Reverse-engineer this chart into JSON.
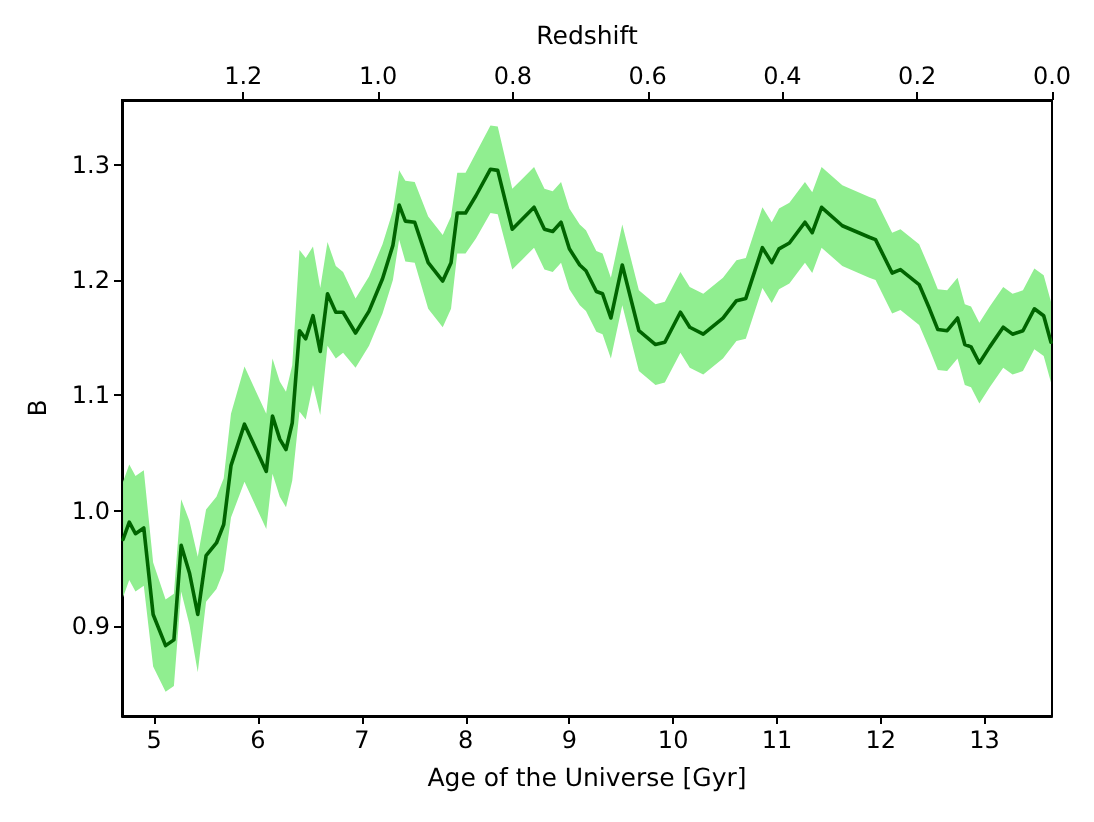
{
  "chart_data": {
    "type": "line",
    "xlabel": "Age of the Universe [Gyr]",
    "ylabel": "B",
    "x2label": "Redshift",
    "xlim": [
      4.69,
      13.65
    ],
    "xticks": [
      5,
      6,
      7,
      8,
      9,
      10,
      11,
      12,
      13
    ],
    "x2lim": [
      1.38,
      0.0
    ],
    "x2ticks": [
      {
        "value": 1.2,
        "label": "1.2"
      },
      {
        "value": 1.0,
        "label": "1.0"
      },
      {
        "value": 0.8,
        "label": "0.8"
      },
      {
        "value": 0.6,
        "label": "0.6"
      },
      {
        "value": 0.4,
        "label": "0.4"
      },
      {
        "value": 0.2,
        "label": "0.2"
      },
      {
        "value": 0.0,
        "label": "0.0"
      }
    ],
    "ylim": [
      0.822,
      1.356
    ],
    "yticks": [
      {
        "value": 0.9,
        "label": "0.9"
      },
      {
        "value": 1.0,
        "label": "1.0"
      },
      {
        "value": 1.1,
        "label": "1.1"
      },
      {
        "value": 1.2,
        "label": "1.2"
      },
      {
        "value": 1.3,
        "label": "1.3"
      }
    ],
    "grid": false,
    "marker": "none",
    "line_style": "solid",
    "x": [
      4.7,
      4.76,
      4.82,
      4.9,
      4.99,
      5.11,
      5.19,
      5.26,
      5.34,
      5.42,
      5.5,
      5.6,
      5.67,
      5.74,
      5.87,
      6.08,
      6.14,
      6.21,
      6.27,
      6.33,
      6.4,
      6.46,
      6.53,
      6.6,
      6.67,
      6.75,
      6.82,
      6.94,
      7.07,
      7.2,
      7.3,
      7.36,
      7.42,
      7.51,
      7.64,
      7.78,
      7.86,
      7.92,
      8.0,
      8.1,
      8.24,
      8.31,
      8.45,
      8.55,
      8.66,
      8.76,
      8.84,
      8.92,
      9.0,
      9.1,
      9.16,
      9.26,
      9.32,
      9.4,
      9.51,
      9.67,
      9.83,
      9.92,
      10.07,
      10.16,
      10.29,
      10.48,
      10.61,
      10.7,
      10.86,
      10.95,
      11.02,
      11.12,
      11.27,
      11.34,
      11.43,
      11.63,
      11.89,
      11.95,
      12.11,
      12.19,
      12.37,
      12.47,
      12.55,
      12.64,
      12.74,
      12.81,
      12.87,
      12.95,
      13.05,
      13.18,
      13.27,
      13.37,
      13.48,
      13.57,
      13.64
    ],
    "series": [
      {
        "color": "#006400",
        "values": [
          0.975,
          0.99,
          0.98,
          0.985,
          0.91,
          0.883,
          0.888,
          0.97,
          0.946,
          0.91,
          0.961,
          0.972,
          0.988,
          1.039,
          1.075,
          1.034,
          1.082,
          1.062,
          1.053,
          1.076,
          1.156,
          1.149,
          1.169,
          1.138,
          1.188,
          1.172,
          1.172,
          1.154,
          1.173,
          1.201,
          1.23,
          1.265,
          1.251,
          1.25,
          1.215,
          1.199,
          1.215,
          1.258,
          1.258,
          1.273,
          1.296,
          1.295,
          1.244,
          1.253,
          1.263,
          1.244,
          1.242,
          1.25,
          1.227,
          1.213,
          1.208,
          1.19,
          1.188,
          1.167,
          1.213,
          1.156,
          1.144,
          1.146,
          1.172,
          1.159,
          1.153,
          1.167,
          1.182,
          1.184,
          1.228,
          1.215,
          1.227,
          1.232,
          1.25,
          1.241,
          1.263,
          1.247,
          1.237,
          1.235,
          1.206,
          1.209,
          1.196,
          1.175,
          1.157,
          1.156,
          1.167,
          1.144,
          1.142,
          1.128,
          1.142,
          1.159,
          1.153,
          1.156,
          1.175,
          1.169,
          1.146
        ],
        "lower": [
          0.925,
          0.94,
          0.93,
          0.935,
          0.865,
          0.843,
          0.848,
          0.93,
          0.901,
          0.86,
          0.921,
          0.932,
          0.948,
          0.994,
          1.025,
          0.984,
          1.032,
          1.012,
          1.003,
          1.026,
          1.086,
          1.079,
          1.109,
          1.083,
          1.143,
          1.132,
          1.137,
          1.124,
          1.143,
          1.171,
          1.2,
          1.235,
          1.216,
          1.215,
          1.175,
          1.159,
          1.175,
          1.223,
          1.223,
          1.236,
          1.258,
          1.257,
          1.209,
          1.218,
          1.228,
          1.209,
          1.207,
          1.215,
          1.192,
          1.178,
          1.173,
          1.155,
          1.153,
          1.132,
          1.178,
          1.121,
          1.109,
          1.111,
          1.137,
          1.124,
          1.118,
          1.132,
          1.147,
          1.149,
          1.193,
          1.18,
          1.192,
          1.197,
          1.215,
          1.206,
          1.228,
          1.212,
          1.202,
          1.2,
          1.171,
          1.174,
          1.161,
          1.14,
          1.122,
          1.121,
          1.132,
          1.109,
          1.107,
          1.093,
          1.107,
          1.124,
          1.118,
          1.121,
          1.14,
          1.134,
          1.111
        ],
        "upper": [
          1.025,
          1.04,
          1.03,
          1.035,
          0.955,
          0.923,
          0.928,
          1.01,
          0.991,
          0.96,
          1.001,
          1.012,
          1.028,
          1.084,
          1.125,
          1.084,
          1.132,
          1.112,
          1.103,
          1.126,
          1.226,
          1.219,
          1.229,
          1.193,
          1.233,
          1.212,
          1.207,
          1.184,
          1.203,
          1.231,
          1.26,
          1.295,
          1.286,
          1.285,
          1.255,
          1.239,
          1.255,
          1.293,
          1.293,
          1.31,
          1.334,
          1.333,
          1.279,
          1.288,
          1.298,
          1.279,
          1.277,
          1.285,
          1.262,
          1.248,
          1.243,
          1.225,
          1.223,
          1.202,
          1.248,
          1.191,
          1.179,
          1.181,
          1.207,
          1.194,
          1.188,
          1.202,
          1.217,
          1.219,
          1.263,
          1.25,
          1.262,
          1.267,
          1.285,
          1.276,
          1.298,
          1.282,
          1.272,
          1.27,
          1.241,
          1.244,
          1.231,
          1.21,
          1.192,
          1.191,
          1.202,
          1.179,
          1.177,
          1.163,
          1.177,
          1.194,
          1.188,
          1.191,
          1.21,
          1.204,
          1.181
        ]
      }
    ]
  }
}
